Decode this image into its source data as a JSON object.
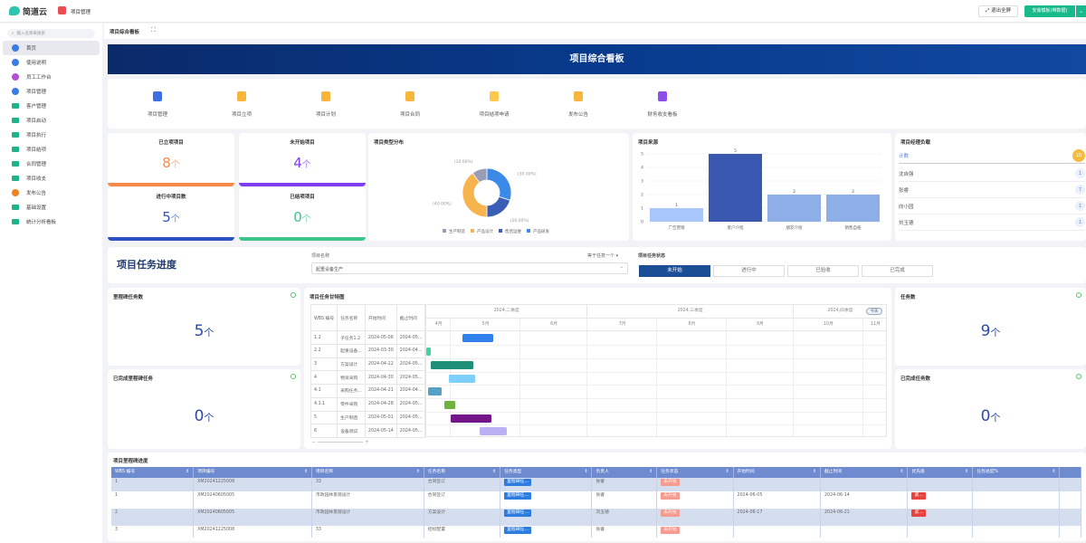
{
  "app": {
    "logo": "简道云",
    "app_name": "项目管理",
    "exit_fullscreen": "退出全屏",
    "primary_action": "安装模板(带数据)"
  },
  "sidebar": {
    "search_placeholder": "输入名称来搜索",
    "items": [
      {
        "label": "首页",
        "icon": "home-icon",
        "color": "#3b7be8",
        "active": true
      },
      {
        "label": "使用说明",
        "icon": "doc-icon",
        "color": "#3b7be8"
      },
      {
        "label": "员工工作台",
        "icon": "user-icon",
        "color": "#b34fd8"
      },
      {
        "label": "项目管理",
        "icon": "doc-icon",
        "color": "#3b7be8"
      },
      {
        "label": "客户管理",
        "icon": "folder-icon"
      },
      {
        "label": "项目启动",
        "icon": "folder-icon"
      },
      {
        "label": "项目执行",
        "icon": "folder-icon"
      },
      {
        "label": "项目结项",
        "icon": "folder-icon"
      },
      {
        "label": "合同管理",
        "icon": "folder-icon"
      },
      {
        "label": "项目收支",
        "icon": "folder-icon"
      },
      {
        "label": "发布公告",
        "icon": "bell-icon",
        "color": "#f0821e"
      },
      {
        "label": "基础设置",
        "icon": "folder-icon"
      },
      {
        "label": "统计分析看板",
        "icon": "folder-icon"
      }
    ]
  },
  "breadcrumb": {
    "title": "项目综合看板"
  },
  "banner": {
    "title": "项目综合看板"
  },
  "quick_links": [
    {
      "label": "项目管理",
      "color": "#3d6fe0"
    },
    {
      "label": "项目立项",
      "color": "#f8b53b"
    },
    {
      "label": "项目计划",
      "color": "#f8b53b"
    },
    {
      "label": "项目合同",
      "color": "#f8b53b"
    },
    {
      "label": "项目结项申请",
      "color": "#fcc94f"
    },
    {
      "label": "发布公告",
      "color": "#f8b53b"
    },
    {
      "label": "财务收支看板",
      "color": "#8a4fe8"
    }
  ],
  "stats": [
    {
      "label": "已立项项目",
      "value": "8",
      "unit": "个",
      "color": "#f5894a"
    },
    {
      "label": "未开始项目",
      "value": "4",
      "unit": "个",
      "color": "#7c3ef0"
    },
    {
      "label": "进行中项目数",
      "value": "5",
      "unit": "个",
      "color": "#2d52c0"
    },
    {
      "label": "已结项项目",
      "value": "0",
      "unit": "个",
      "color": "#3ec48a"
    }
  ],
  "chart_data": [
    {
      "type": "pie",
      "title": "项目类型分布",
      "donut": true,
      "legend": "bottom",
      "series": [
        {
          "name": "生产制造",
          "value": 10,
          "label": "(10.00%)",
          "color": "#9a9cb3"
        },
        {
          "name": "产品设计",
          "value": 40,
          "label": "(40.00%)",
          "color": "#f7b44c"
        },
        {
          "name": "售后运维",
          "value": 20,
          "label": "(20.00%)",
          "color": "#3a5db5"
        },
        {
          "name": "产品研发",
          "value": 30,
          "label": "(30.00%)",
          "color": "#3b8ae8"
        }
      ]
    },
    {
      "type": "bar",
      "title": "项目来源",
      "categories": [
        "广告营销",
        "客户介绍",
        "朋友介绍",
        "销售自拓"
      ],
      "values": [
        1,
        5,
        2,
        2
      ],
      "colors": [
        "#a9c7fb",
        "#3a58b0",
        "#8eaee8",
        "#8eaee8"
      ],
      "ylim": [
        0,
        5
      ],
      "yticks": [
        0,
        1,
        2,
        3,
        4,
        5
      ],
      "grid": true
    }
  ],
  "managers": {
    "title": "项目经理负载",
    "total_label": "计数",
    "total": "10",
    "items": [
      {
        "name": "沈自强",
        "count": "1"
      },
      {
        "name": "张睿",
        "count": "7"
      },
      {
        "name": "向小园",
        "count": "1"
      },
      {
        "name": "刘玉德",
        "count": "1"
      }
    ]
  },
  "progress": {
    "title": "项目任务进度",
    "filter_label": "项目名称",
    "filter_op": "等于任意一个",
    "filter_value": "起重设备生产",
    "status_label": "项目任务状态",
    "statuses": [
      "未开始",
      "进行中",
      "已验收",
      "已完成"
    ],
    "active_status": "未开始"
  },
  "kpis": [
    {
      "label": "里程碑任务数",
      "value": "5",
      "unit": "个"
    },
    {
      "label": "已完成里程碑任务",
      "value": "0",
      "unit": "个"
    },
    {
      "label": "任务数",
      "value": "9",
      "unit": "个"
    },
    {
      "label": "已完成任务数",
      "value": "0",
      "unit": "个"
    }
  ],
  "gantt": {
    "title": "项目任务甘特图",
    "today": "今天",
    "columns": [
      "WBS 编号",
      "任务名称",
      "开始时间",
      "截止时间"
    ],
    "quarters": [
      {
        "label": "2024,二季度",
        "start": "2024-04-01"
      },
      {
        "label": "2024,三季度",
        "start": "2024-07-01"
      },
      {
        "label": "2024,四季度",
        "start": "2024-10-01"
      }
    ],
    "months": [
      {
        "label": "4月",
        "start": "2024-04-01"
      },
      {
        "label": "5月",
        "start": "2024-05-01"
      },
      {
        "label": "6月",
        "start": "2024-06-01"
      },
      {
        "label": "7月",
        "start": "2024-07-01"
      },
      {
        "label": "8月",
        "start": "2024-08-01"
      },
      {
        "label": "9月",
        "start": "2024-09-01"
      },
      {
        "label": "10月",
        "start": "2024-10-01"
      },
      {
        "label": "11月",
        "start": "2024-11-01"
      }
    ],
    "view_start": "2024-04-20",
    "view_end": "2024-11-12",
    "tasks": [
      {
        "wbs": "1.2",
        "name": "子任务1.2",
        "start": "2024-05-06",
        "end_text": "2024-05...",
        "end": "2024-05-20",
        "color": "#2f80ed"
      },
      {
        "wbs": "2.2",
        "name": "起重设备...",
        "start": "2024-03-30",
        "end_text": "2024-04...",
        "end": "2024-04-22",
        "color": "#3ed598"
      },
      {
        "wbs": "3",
        "name": "方案设计",
        "start": "2024-04-22",
        "end_text": "2024-05...",
        "end": "2024-05-11",
        "color": "#1f8f78"
      },
      {
        "wbs": "4",
        "name": "物资采购",
        "start": "2024-04-30",
        "end_text": "2024-05...",
        "end": "2024-05-12",
        "color": "#7dd0fb"
      },
      {
        "wbs": "4.1",
        "name": "采购任务...",
        "start": "2024-04-21",
        "end_text": "2024-04...",
        "end": "2024-04-27",
        "color": "#55a2c6"
      },
      {
        "wbs": "4.1.1",
        "name": "零件采购",
        "start": "2024-04-28",
        "end_text": "2024-05...",
        "end": "2024-05-03",
        "color": "#6db33f"
      },
      {
        "wbs": "5",
        "name": "生产制造",
        "start": "2024-05-01",
        "end_text": "2024-05...",
        "end": "2024-05-19",
        "color": "#74168a"
      },
      {
        "wbs": "6",
        "name": "设备调试",
        "start": "2024-05-14",
        "end_text": "2024-05...",
        "end": "2024-05-26",
        "color": "#bcb0f5"
      }
    ]
  },
  "milestones": {
    "title": "项目里程碑进度",
    "columns": [
      "WBS 编号",
      "项目编号",
      "项目名称",
      "任务名称",
      "任务类型",
      "负责人",
      "任务状态",
      "开始时间",
      "截止时间",
      "优先级",
      "任务进度%"
    ],
    "rows": [
      [
        "1",
        "XM20241225008",
        "33",
        "合同签订",
        "里程碑任...",
        "张睿",
        "未开始",
        "",
        "",
        "",
        ""
      ],
      [
        "1",
        "XM20240605005",
        "市政园林景观设计",
        "合同签订",
        "里程碑任...",
        "张睿",
        "未开始",
        "2024-06-05",
        "2024-06-14",
        "紧...",
        ""
      ],
      [
        "2",
        "XM20240605005",
        "市政园林景观设计",
        "方案设计",
        "里程碑任...",
        "刘玉德",
        "未开始",
        "2024-06-17",
        "2024-06-21",
        "紧...",
        ""
      ],
      [
        "3",
        "XM20241225008",
        "33",
        "招标配置",
        "里程碑任...",
        "张睿",
        "未开始",
        "",
        "",
        "",
        ""
      ]
    ]
  }
}
